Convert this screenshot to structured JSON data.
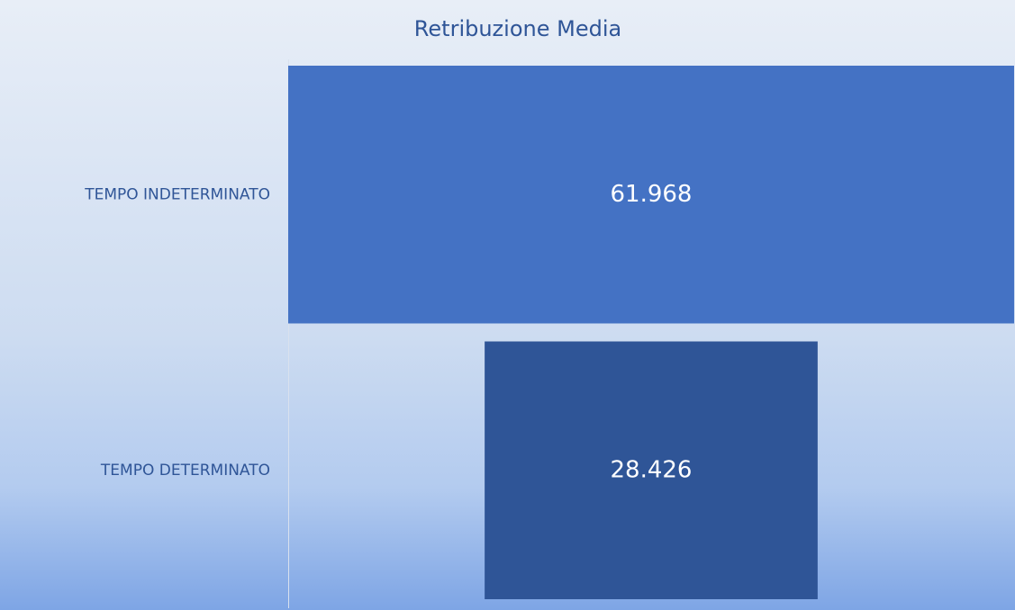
{
  "chart_data": {
    "type": "funnel",
    "title": "Retribuzione Media",
    "categories": [
      "TEMPO INDETERMINATO",
      "TEMPO DETERMINATO"
    ],
    "values": [
      61968,
      28426
    ],
    "value_labels": [
      "61.968",
      "28.426"
    ],
    "colors": [
      "#4472c4",
      "#2f5597"
    ]
  }
}
